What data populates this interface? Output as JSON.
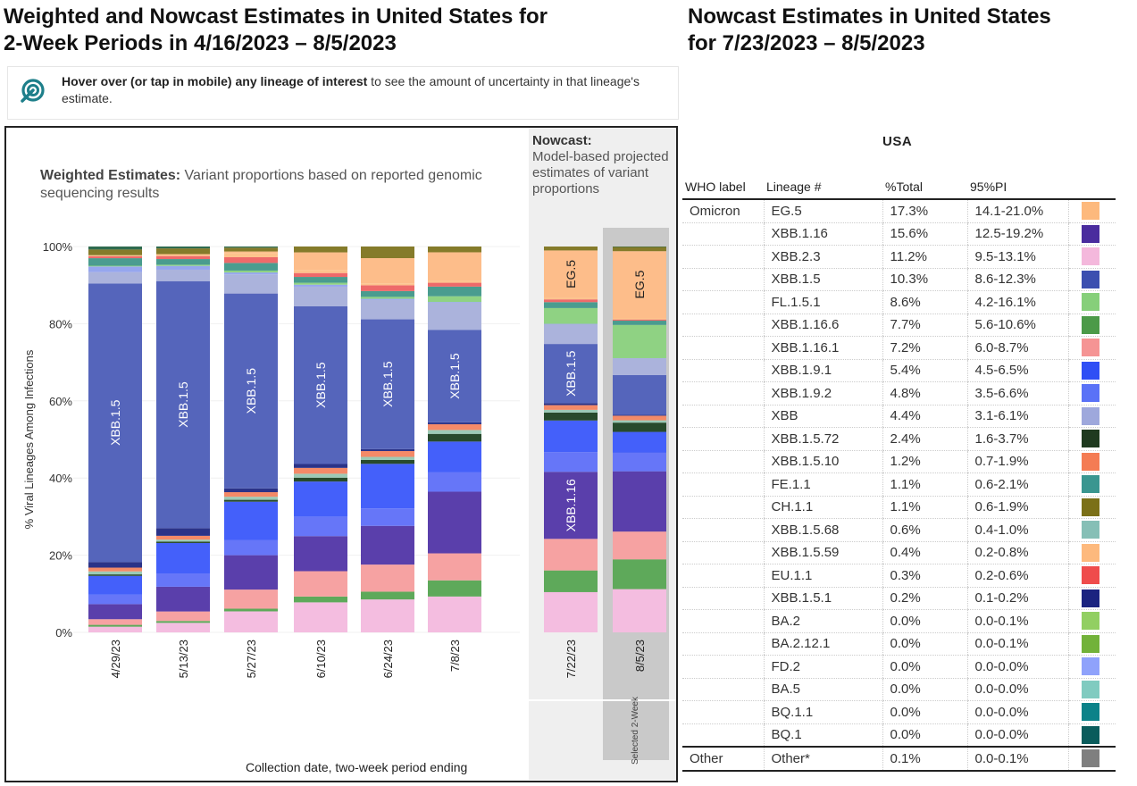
{
  "left_title": "Weighted and Nowcast Estimates in United States for 2-Week Periods in 4/16/2023 – 8/5/2023",
  "left_title_lines": [
    "Weighted and Nowcast Estimates in United States for",
    "2-Week Periods in 4/16/2023 – 8/5/2023"
  ],
  "right_title_lines": [
    "Nowcast Estimates in United States",
    "for 7/23/2023 – 8/5/2023"
  ],
  "hint": {
    "icon": "target-cursor-icon",
    "bold": "Hover over (or tap in mobile) any lineage of interest",
    "rest": " to see the amount of uncertainty in that lineage's estimate."
  },
  "weighted": {
    "title_bold": "Weighted Estimates:",
    "title_rest": " Variant proportions based on reported genomic sequencing results"
  },
  "nowcast_panel": {
    "title_bold": "Nowcast:",
    "title_rest": "Model-based projected estimates of variant proportions",
    "selected_label": "Selected 2-Week"
  },
  "table": {
    "region": "USA",
    "headers": [
      "WHO label",
      "Lineage #",
      "%Total",
      "95%PI"
    ],
    "rows": [
      {
        "who": "Omicron",
        "lineage": "EG.5",
        "total": "17.3%",
        "pi": "14.1-21.0%",
        "color": "#fdb97d"
      },
      {
        "who": "",
        "lineage": "XBB.1.16",
        "total": "15.6%",
        "pi": "12.5-19.2%",
        "color": "#4a2c9e"
      },
      {
        "who": "",
        "lineage": "XBB.2.3",
        "total": "11.2%",
        "pi": "9.5-13.1%",
        "color": "#f4b8dc"
      },
      {
        "who": "",
        "lineage": "XBB.1.5",
        "total": "10.3%",
        "pi": "8.6-12.3%",
        "color": "#3c4fb0"
      },
      {
        "who": "",
        "lineage": "FL.1.5.1",
        "total": "8.6%",
        "pi": "4.2-16.1%",
        "color": "#86cf7a"
      },
      {
        "who": "",
        "lineage": "XBB.1.16.6",
        "total": "7.7%",
        "pi": "5.6-10.6%",
        "color": "#4c9a48"
      },
      {
        "who": "",
        "lineage": "XBB.1.16.1",
        "total": "7.2%",
        "pi": "6.0-8.7%",
        "color": "#f59494"
      },
      {
        "who": "",
        "lineage": "XBB.1.9.1",
        "total": "5.4%",
        "pi": "4.5-6.5%",
        "color": "#2f4ff5"
      },
      {
        "who": "",
        "lineage": "XBB.1.9.2",
        "total": "4.8%",
        "pi": "3.5-6.6%",
        "color": "#5a72f7"
      },
      {
        "who": "",
        "lineage": "XBB",
        "total": "4.4%",
        "pi": "3.1-6.1%",
        "color": "#9ea8dc"
      },
      {
        "who": "",
        "lineage": "XBB.1.5.72",
        "total": "2.4%",
        "pi": "1.6-3.7%",
        "color": "#1f3a1f"
      },
      {
        "who": "",
        "lineage": "XBB.1.5.10",
        "total": "1.2%",
        "pi": "0.7-1.9%",
        "color": "#f47c54"
      },
      {
        "who": "",
        "lineage": "FE.1.1",
        "total": "1.1%",
        "pi": "0.6-2.1%",
        "color": "#3a9690"
      },
      {
        "who": "",
        "lineage": "CH.1.1",
        "total": "1.1%",
        "pi": "0.6-1.9%",
        "color": "#7b7018"
      },
      {
        "who": "",
        "lineage": "XBB.1.5.68",
        "total": "0.6%",
        "pi": "0.4-1.0%",
        "color": "#86bfb6"
      },
      {
        "who": "",
        "lineage": "XBB.1.5.59",
        "total": "0.4%",
        "pi": "0.2-0.8%",
        "color": "#fdb97d"
      },
      {
        "who": "",
        "lineage": "EU.1.1",
        "total": "0.3%",
        "pi": "0.2-0.6%",
        "color": "#ef4c4c"
      },
      {
        "who": "",
        "lineage": "XBB.1.5.1",
        "total": "0.2%",
        "pi": "0.1-0.2%",
        "color": "#1b2380"
      },
      {
        "who": "",
        "lineage": "BA.2",
        "total": "0.0%",
        "pi": "0.0-0.1%",
        "color": "#92cf62"
      },
      {
        "who": "",
        "lineage": "BA.2.12.1",
        "total": "0.0%",
        "pi": "0.0-0.1%",
        "color": "#72b23a"
      },
      {
        "who": "",
        "lineage": "FD.2",
        "total": "0.0%",
        "pi": "0.0-0.0%",
        "color": "#8fa2fb"
      },
      {
        "who": "",
        "lineage": "BA.5",
        "total": "0.0%",
        "pi": "0.0-0.0%",
        "color": "#80cbc0"
      },
      {
        "who": "",
        "lineage": "BQ.1.1",
        "total": "0.0%",
        "pi": "0.0-0.0%",
        "color": "#0c8289"
      },
      {
        "who": "",
        "lineage": "BQ.1",
        "total": "0.0%",
        "pi": "0.0-0.0%",
        "color": "#0a5c5c"
      }
    ],
    "other_row": {
      "who": "Other",
      "lineage": "Other*",
      "total": "0.1%",
      "pi": "0.0-0.1%",
      "color": "#7f7f7f"
    }
  },
  "chart_data": {
    "type": "bar",
    "stacked": true,
    "title": "Weighted Estimates",
    "ylabel": "% Viral Lineages Among Infections",
    "xlabel": "Collection date, two-week period ending",
    "ylim": [
      0,
      100
    ],
    "yticks": [
      "0%",
      "20%",
      "40%",
      "60%",
      "80%",
      "100%"
    ],
    "categories": [
      "4/29/23",
      "5/13/23",
      "5/27/23",
      "6/10/23",
      "6/24/23",
      "7/8/23",
      "7/22/23",
      "8/5/23"
    ],
    "nowcast_categories": [
      "7/22/23",
      "8/5/23"
    ],
    "selected_category": "8/5/23",
    "bar_labels": [
      {
        "category": "4/29/23",
        "label": "XBB.1.5"
      },
      {
        "category": "5/13/23",
        "label": "XBB.1.5"
      },
      {
        "category": "5/27/23",
        "label": "XBB.1.5"
      },
      {
        "category": "6/10/23",
        "label": "XBB.1.5"
      },
      {
        "category": "6/24/23",
        "label": "XBB.1.5"
      },
      {
        "category": "7/8/23",
        "label": "XBB.1.5"
      },
      {
        "category": "7/22/23",
        "label": "EG.5"
      },
      {
        "category": "7/22/23",
        "label": "XBB.1.5"
      },
      {
        "category": "7/22/23",
        "label": "XBB.1.16"
      },
      {
        "category": "8/5/23",
        "label": "EG.5"
      }
    ],
    "series_order": [
      "XBB.2.3",
      "XBB.1.16.6",
      "XBB.1.16.1",
      "XBB.1.16",
      "XBB.1.9.2",
      "XBB.1.9.1",
      "XBB.1.5.72",
      "XBB.1.5.68",
      "XBB.1.5.10",
      "XBB.1.5.1",
      "XBB.1.5",
      "XBB",
      "FD.2",
      "FL.1.5.1",
      "FE.1.1",
      "EU.1.1",
      "XBB.1.5.59",
      "EG.5",
      "CH.1.1",
      "Other"
    ],
    "series": [
      {
        "name": "XBB.2.3",
        "color": "#f4bde0",
        "values": [
          1.5,
          2.5,
          5.5,
          7.7,
          8.5,
          9.3,
          10.2,
          11.2
        ]
      },
      {
        "name": "XBB.1.16.6",
        "color": "#5ea95a",
        "values": [
          0.5,
          0.5,
          0.7,
          1.5,
          2.0,
          4.2,
          5.5,
          7.7
        ]
      },
      {
        "name": "XBB.1.16.1",
        "color": "#f6a2a2",
        "values": [
          1.5,
          2.5,
          5.0,
          6.5,
          7.0,
          7.0,
          8.0,
          7.2
        ]
      },
      {
        "name": "XBB.1.16",
        "color": "#5a3fab",
        "values": [
          4.0,
          6.5,
          9.0,
          9.0,
          10.0,
          16.0,
          17.0,
          15.6
        ]
      },
      {
        "name": "XBB.1.9.2",
        "color": "#6676f8",
        "values": [
          2.5,
          3.5,
          4.0,
          5.0,
          4.5,
          5.0,
          5.0,
          4.8
        ]
      },
      {
        "name": "XBB.1.9.1",
        "color": "#4460fa",
        "values": [
          5.0,
          8.0,
          10.0,
          9.0,
          11.5,
          8.0,
          8.0,
          5.4
        ]
      },
      {
        "name": "XBB.1.5.72",
        "color": "#284a2c",
        "values": [
          0.4,
          0.4,
          0.5,
          1.0,
          1.0,
          2.0,
          2.0,
          2.4
        ]
      },
      {
        "name": "XBB.1.5.68",
        "color": "#9ccab6",
        "values": [
          0.8,
          0.5,
          0.8,
          1.0,
          0.8,
          1.0,
          0.7,
          0.6
        ]
      },
      {
        "name": "XBB.1.5.10",
        "color": "#f48a68",
        "values": [
          1.0,
          1.0,
          1.2,
          1.5,
          1.5,
          1.5,
          1.2,
          1.2
        ]
      },
      {
        "name": "XBB.1.5.1",
        "color": "#2b3388",
        "values": [
          1.5,
          2.0,
          1.0,
          1.0,
          0.5,
          0.5,
          0.5,
          0.2
        ]
      },
      {
        "name": "XBB.1.5",
        "color": "#5565bb",
        "values": [
          74.0,
          65.0,
          51.0,
          40.5,
          33.5,
          24.0,
          15.0,
          10.3
        ]
      },
      {
        "name": "XBB",
        "color": "#abb3dc",
        "values": [
          3.0,
          3.0,
          5.0,
          5.0,
          5.0,
          7.0,
          5.0,
          4.4
        ]
      },
      {
        "name": "FD.2",
        "color": "#96a6ee",
        "values": [
          1.5,
          1.0,
          0.5,
          0.5,
          0.3,
          0.2,
          0.1,
          0.0
        ]
      },
      {
        "name": "FL.1.5.1",
        "color": "#8fd283",
        "values": [
          0.2,
          0.3,
          0.5,
          0.5,
          0.5,
          1.5,
          4.0,
          8.6
        ]
      },
      {
        "name": "FE.1.1",
        "color": "#4a9c8f",
        "values": [
          2.0,
          1.5,
          2.0,
          1.5,
          1.5,
          2.5,
          1.5,
          1.1
        ]
      },
      {
        "name": "EU.1.1",
        "color": "#ee6a6a",
        "values": [
          0.5,
          0.8,
          1.5,
          1.0,
          1.5,
          1.0,
          0.7,
          0.3
        ]
      },
      {
        "name": "XBB.1.5.59",
        "color": "#fdc38c",
        "values": [
          0.3,
          0.5,
          1.0,
          0.8,
          0.5,
          0.4,
          0.4,
          0.4
        ]
      },
      {
        "name": "EG.5",
        "color": "#fdbd8a",
        "values": [
          0.0,
          0.0,
          0.5,
          4.5,
          6.5,
          7.5,
          12.0,
          17.3
        ]
      },
      {
        "name": "CH.1.1",
        "color": "#857b2a",
        "values": [
          1.5,
          1.5,
          1.0,
          1.5,
          3.0,
          1.5,
          1.0,
          1.1
        ]
      },
      {
        "name": "Other",
        "color": "#2f6b4f",
        "values": [
          0.8,
          0.5,
          0.3,
          0.0,
          0.0,
          0.0,
          0.0,
          0.1
        ]
      }
    ]
  }
}
